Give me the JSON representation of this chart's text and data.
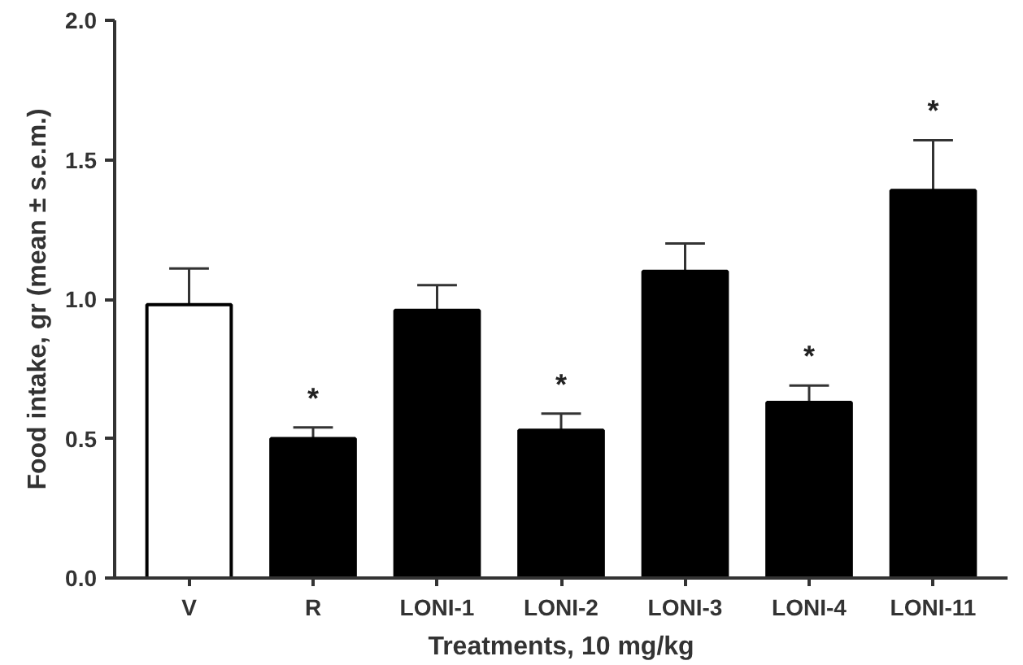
{
  "chart_data": {
    "type": "bar",
    "xlabel": "Treatments, 10 mg/kg",
    "ylabel": "Food intake, gr (mean ± s.e.m.)",
    "categories": [
      "V",
      "R",
      "LONI-1",
      "LONI-2",
      "LONI-3",
      "LONI-4",
      "LONI-11"
    ],
    "values": [
      0.98,
      0.5,
      0.96,
      0.53,
      1.1,
      0.63,
      1.39
    ],
    "errors": [
      0.13,
      0.04,
      0.09,
      0.06,
      0.1,
      0.06,
      0.18
    ],
    "colors": [
      "#ffffff",
      "#000000",
      "#000000",
      "#000000",
      "#000000",
      "#000000",
      "#000000"
    ],
    "ylim": [
      0,
      2.0
    ],
    "yticks": [
      {
        "value": 0,
        "label": "0.0"
      },
      {
        "value": 0.5,
        "label": "0.5"
      },
      {
        "value": 1.0,
        "label": "1.0"
      },
      {
        "value": 1.5,
        "label": "1.5"
      },
      {
        "value": 2.0,
        "label": "2.0"
      }
    ],
    "grid": false,
    "value_labels": [
      null,
      "*",
      null,
      "*",
      null,
      "*",
      "*"
    ]
  }
}
